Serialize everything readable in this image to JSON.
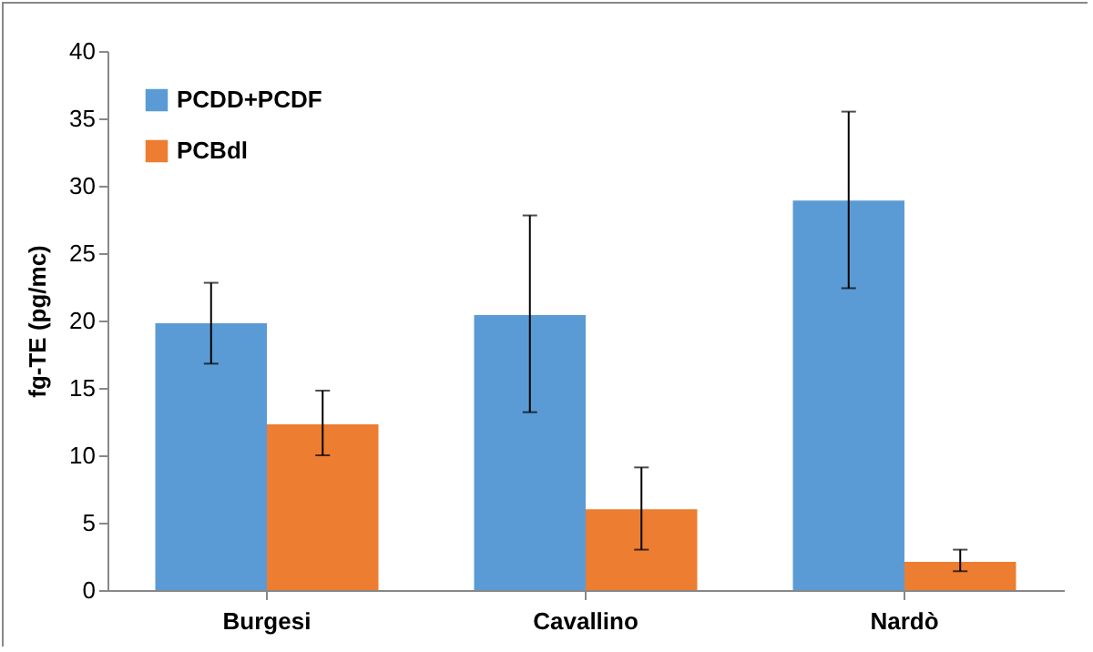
{
  "chart_data": {
    "type": "bar",
    "ylabel": "fg-TE (pg/mc)",
    "categories": [
      "Burgesi",
      "Cavallino",
      "Nardò"
    ],
    "series": [
      {
        "name": "PCDD+PCDF",
        "color": "#5b9bd5",
        "values": [
          19.8,
          20.4,
          28.9
        ],
        "errors": [
          [
            16.8,
            22.8
          ],
          [
            13.2,
            27.8
          ],
          [
            22.4,
            35.5
          ]
        ]
      },
      {
        "name": "PCBdl",
        "color": "#ed7d31",
        "values": [
          12.3,
          6.0,
          2.1
        ],
        "errors": [
          [
            10.0,
            14.8
          ],
          [
            3.0,
            9.1
          ],
          [
            1.4,
            3.0
          ]
        ]
      }
    ],
    "ylim": [
      0,
      40
    ],
    "yticks": [
      0,
      5,
      10,
      15,
      20,
      25,
      30,
      35,
      40
    ],
    "grid": false,
    "legend": "top left"
  }
}
